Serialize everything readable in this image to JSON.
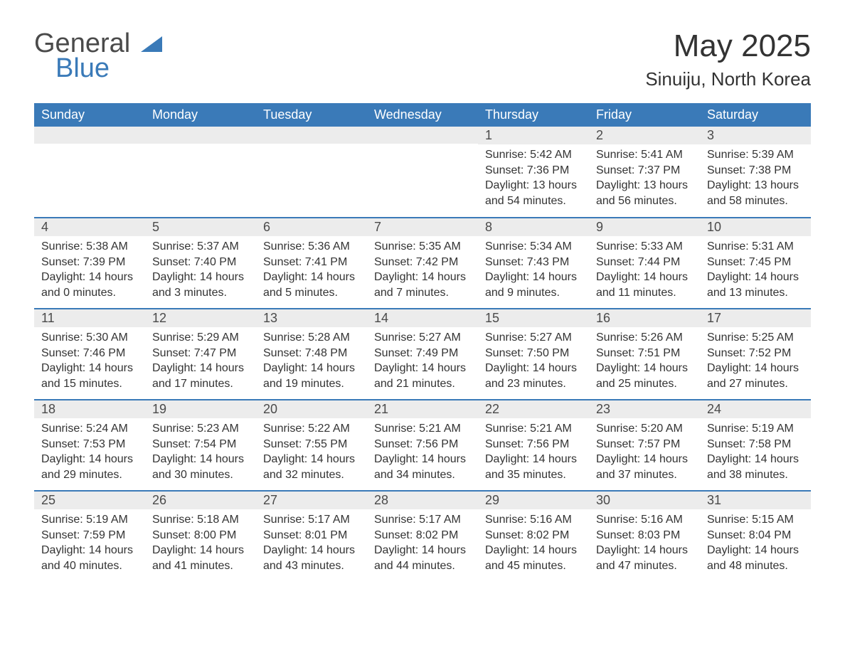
{
  "logo": {
    "word1": "General",
    "word2": "Blue",
    "color_text": "#4a4a4a",
    "color_blue": "#3a7ab8"
  },
  "title": "May 2025",
  "location": "Sinuiju, North Korea",
  "theme": {
    "header_bg": "#3a7ab8",
    "header_text": "#ffffff",
    "daynum_bg": "#ececec",
    "border_color": "#3a7ab8",
    "body_text": "#333333",
    "page_bg": "#ffffff"
  },
  "weekdays": [
    "Sunday",
    "Monday",
    "Tuesday",
    "Wednesday",
    "Thursday",
    "Friday",
    "Saturday"
  ],
  "weeks": [
    [
      null,
      null,
      null,
      null,
      {
        "day": "1",
        "sunrise": "Sunrise: 5:42 AM",
        "sunset": "Sunset: 7:36 PM",
        "daylight1": "Daylight: 13 hours",
        "daylight2": "and 54 minutes."
      },
      {
        "day": "2",
        "sunrise": "Sunrise: 5:41 AM",
        "sunset": "Sunset: 7:37 PM",
        "daylight1": "Daylight: 13 hours",
        "daylight2": "and 56 minutes."
      },
      {
        "day": "3",
        "sunrise": "Sunrise: 5:39 AM",
        "sunset": "Sunset: 7:38 PM",
        "daylight1": "Daylight: 13 hours",
        "daylight2": "and 58 minutes."
      }
    ],
    [
      {
        "day": "4",
        "sunrise": "Sunrise: 5:38 AM",
        "sunset": "Sunset: 7:39 PM",
        "daylight1": "Daylight: 14 hours",
        "daylight2": "and 0 minutes."
      },
      {
        "day": "5",
        "sunrise": "Sunrise: 5:37 AM",
        "sunset": "Sunset: 7:40 PM",
        "daylight1": "Daylight: 14 hours",
        "daylight2": "and 3 minutes."
      },
      {
        "day": "6",
        "sunrise": "Sunrise: 5:36 AM",
        "sunset": "Sunset: 7:41 PM",
        "daylight1": "Daylight: 14 hours",
        "daylight2": "and 5 minutes."
      },
      {
        "day": "7",
        "sunrise": "Sunrise: 5:35 AM",
        "sunset": "Sunset: 7:42 PM",
        "daylight1": "Daylight: 14 hours",
        "daylight2": "and 7 minutes."
      },
      {
        "day": "8",
        "sunrise": "Sunrise: 5:34 AM",
        "sunset": "Sunset: 7:43 PM",
        "daylight1": "Daylight: 14 hours",
        "daylight2": "and 9 minutes."
      },
      {
        "day": "9",
        "sunrise": "Sunrise: 5:33 AM",
        "sunset": "Sunset: 7:44 PM",
        "daylight1": "Daylight: 14 hours",
        "daylight2": "and 11 minutes."
      },
      {
        "day": "10",
        "sunrise": "Sunrise: 5:31 AM",
        "sunset": "Sunset: 7:45 PM",
        "daylight1": "Daylight: 14 hours",
        "daylight2": "and 13 minutes."
      }
    ],
    [
      {
        "day": "11",
        "sunrise": "Sunrise: 5:30 AM",
        "sunset": "Sunset: 7:46 PM",
        "daylight1": "Daylight: 14 hours",
        "daylight2": "and 15 minutes."
      },
      {
        "day": "12",
        "sunrise": "Sunrise: 5:29 AM",
        "sunset": "Sunset: 7:47 PM",
        "daylight1": "Daylight: 14 hours",
        "daylight2": "and 17 minutes."
      },
      {
        "day": "13",
        "sunrise": "Sunrise: 5:28 AM",
        "sunset": "Sunset: 7:48 PM",
        "daylight1": "Daylight: 14 hours",
        "daylight2": "and 19 minutes."
      },
      {
        "day": "14",
        "sunrise": "Sunrise: 5:27 AM",
        "sunset": "Sunset: 7:49 PM",
        "daylight1": "Daylight: 14 hours",
        "daylight2": "and 21 minutes."
      },
      {
        "day": "15",
        "sunrise": "Sunrise: 5:27 AM",
        "sunset": "Sunset: 7:50 PM",
        "daylight1": "Daylight: 14 hours",
        "daylight2": "and 23 minutes."
      },
      {
        "day": "16",
        "sunrise": "Sunrise: 5:26 AM",
        "sunset": "Sunset: 7:51 PM",
        "daylight1": "Daylight: 14 hours",
        "daylight2": "and 25 minutes."
      },
      {
        "day": "17",
        "sunrise": "Sunrise: 5:25 AM",
        "sunset": "Sunset: 7:52 PM",
        "daylight1": "Daylight: 14 hours",
        "daylight2": "and 27 minutes."
      }
    ],
    [
      {
        "day": "18",
        "sunrise": "Sunrise: 5:24 AM",
        "sunset": "Sunset: 7:53 PM",
        "daylight1": "Daylight: 14 hours",
        "daylight2": "and 29 minutes."
      },
      {
        "day": "19",
        "sunrise": "Sunrise: 5:23 AM",
        "sunset": "Sunset: 7:54 PM",
        "daylight1": "Daylight: 14 hours",
        "daylight2": "and 30 minutes."
      },
      {
        "day": "20",
        "sunrise": "Sunrise: 5:22 AM",
        "sunset": "Sunset: 7:55 PM",
        "daylight1": "Daylight: 14 hours",
        "daylight2": "and 32 minutes."
      },
      {
        "day": "21",
        "sunrise": "Sunrise: 5:21 AM",
        "sunset": "Sunset: 7:56 PM",
        "daylight1": "Daylight: 14 hours",
        "daylight2": "and 34 minutes."
      },
      {
        "day": "22",
        "sunrise": "Sunrise: 5:21 AM",
        "sunset": "Sunset: 7:56 PM",
        "daylight1": "Daylight: 14 hours",
        "daylight2": "and 35 minutes."
      },
      {
        "day": "23",
        "sunrise": "Sunrise: 5:20 AM",
        "sunset": "Sunset: 7:57 PM",
        "daylight1": "Daylight: 14 hours",
        "daylight2": "and 37 minutes."
      },
      {
        "day": "24",
        "sunrise": "Sunrise: 5:19 AM",
        "sunset": "Sunset: 7:58 PM",
        "daylight1": "Daylight: 14 hours",
        "daylight2": "and 38 minutes."
      }
    ],
    [
      {
        "day": "25",
        "sunrise": "Sunrise: 5:19 AM",
        "sunset": "Sunset: 7:59 PM",
        "daylight1": "Daylight: 14 hours",
        "daylight2": "and 40 minutes."
      },
      {
        "day": "26",
        "sunrise": "Sunrise: 5:18 AM",
        "sunset": "Sunset: 8:00 PM",
        "daylight1": "Daylight: 14 hours",
        "daylight2": "and 41 minutes."
      },
      {
        "day": "27",
        "sunrise": "Sunrise: 5:17 AM",
        "sunset": "Sunset: 8:01 PM",
        "daylight1": "Daylight: 14 hours",
        "daylight2": "and 43 minutes."
      },
      {
        "day": "28",
        "sunrise": "Sunrise: 5:17 AM",
        "sunset": "Sunset: 8:02 PM",
        "daylight1": "Daylight: 14 hours",
        "daylight2": "and 44 minutes."
      },
      {
        "day": "29",
        "sunrise": "Sunrise: 5:16 AM",
        "sunset": "Sunset: 8:02 PM",
        "daylight1": "Daylight: 14 hours",
        "daylight2": "and 45 minutes."
      },
      {
        "day": "30",
        "sunrise": "Sunrise: 5:16 AM",
        "sunset": "Sunset: 8:03 PM",
        "daylight1": "Daylight: 14 hours",
        "daylight2": "and 47 minutes."
      },
      {
        "day": "31",
        "sunrise": "Sunrise: 5:15 AM",
        "sunset": "Sunset: 8:04 PM",
        "daylight1": "Daylight: 14 hours",
        "daylight2": "and 48 minutes."
      }
    ]
  ]
}
